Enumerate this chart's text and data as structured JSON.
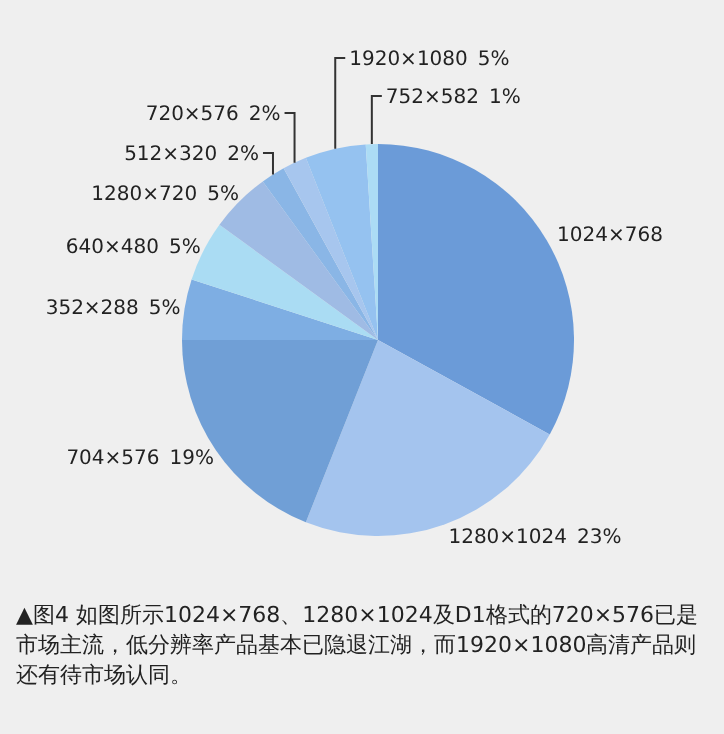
{
  "chart_data": {
    "type": "pie",
    "categories": [
      "1024×768",
      "1280×1024",
      "704×576",
      "352×288",
      "640×480",
      "1280×720",
      "512×320",
      "720×576",
      "1920×1080",
      "752×582"
    ],
    "values": [
      33,
      23,
      19,
      5,
      5,
      5,
      2,
      2,
      5,
      1
    ],
    "value_labels": [
      null,
      "23%",
      "19%",
      "5%",
      "5%",
      "5%",
      "2%",
      "2%",
      "5%",
      "1%"
    ],
    "colors": [
      "#6b9bd8",
      "#a4c4ee",
      "#709fd6",
      "#7eaee3",
      "#aadcf3",
      "#9fbbe4",
      "#8ab6e6",
      "#a7c6ee",
      "#95c2f0",
      "#acdcf5"
    ],
    "legend": false,
    "annotations": [
      "▲图4 如图所示1024×768、1280×1024及D1格式的720×576已是市场主流，低分辨率产品基本已隐退江湖，而1920×1080高清产品则还有待市场认同。"
    ]
  }
}
